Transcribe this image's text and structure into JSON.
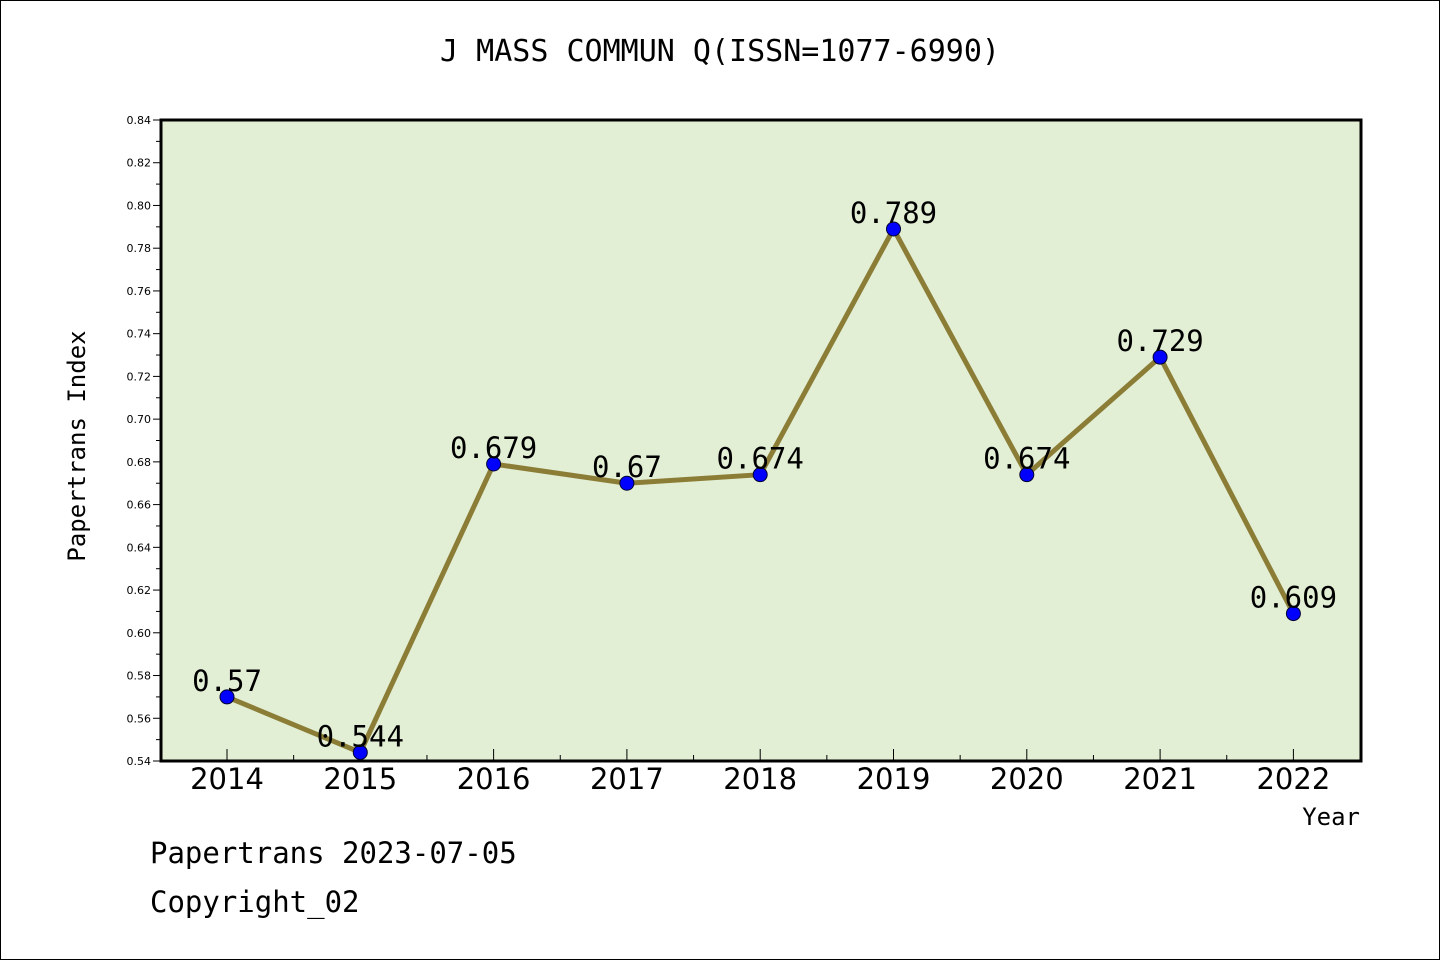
{
  "chart_data": {
    "type": "line",
    "title": "J MASS COMMUN Q(ISSN=1077-6990)",
    "xlabel": "Year",
    "ylabel": "Papertrans Index",
    "categories": [
      "2014",
      "2015",
      "2016",
      "2017",
      "2018",
      "2019",
      "2020",
      "2021",
      "2022"
    ],
    "values": [
      0.57,
      0.544,
      0.679,
      0.67,
      0.674,
      0.789,
      0.674,
      0.729,
      0.609
    ],
    "data_labels": [
      "0.57",
      "0.544",
      "0.679",
      "0.67",
      "0.674",
      "0.789",
      "0.674",
      "0.729",
      "0.609"
    ],
    "ylim": [
      0.54,
      0.84
    ],
    "yticks": [
      "0.54",
      "0.56",
      "0.58",
      "0.60",
      "0.62",
      "0.64",
      "0.66",
      "0.68",
      "0.70",
      "0.72",
      "0.74",
      "0.76",
      "0.78",
      "0.80",
      "0.82",
      "0.84"
    ],
    "grid": false,
    "legend": "none",
    "colors": {
      "plot_background": "#e2efd5",
      "line": "#8b7d36",
      "marker": "#0000ff"
    }
  },
  "footer": {
    "source": "Papertrans 2023-07-05",
    "copyright": "Copyright_02"
  }
}
